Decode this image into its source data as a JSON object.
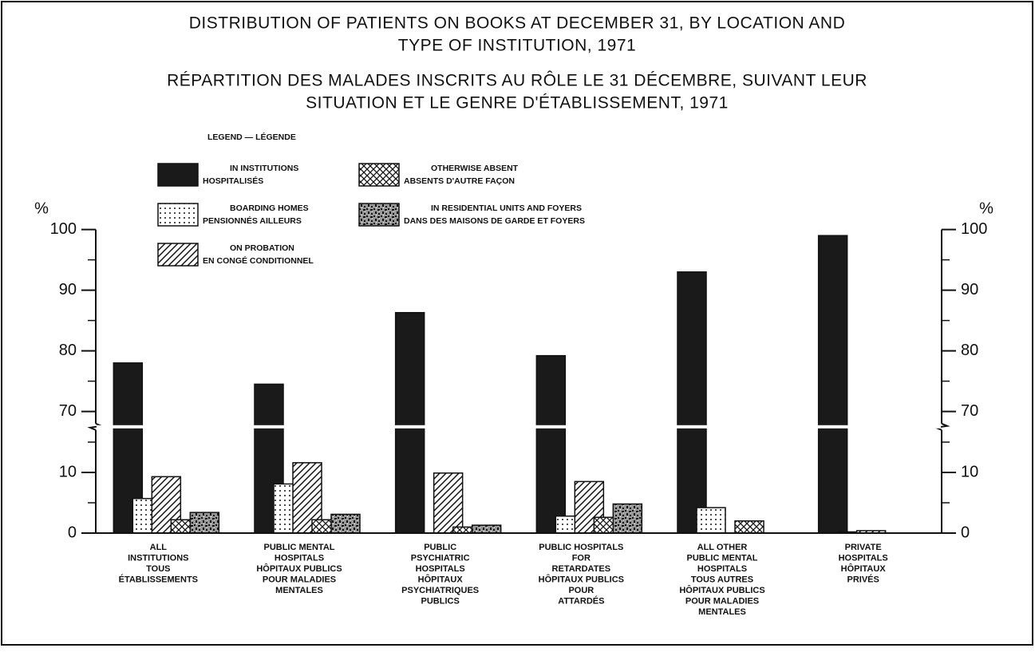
{
  "chart_data": {
    "type": "bar",
    "title": [
      "DISTRIBUTION OF PATIENTS ON BOOKS AT DECEMBER 31, BY LOCATION AND",
      "TYPE OF INSTITUTION, 1971"
    ],
    "subtitle": [
      "RÉPARTITION DES MALADES INSCRITS AU RÔLE LE 31 DÉCEMBRE, SUIVANT LEUR",
      "SITUATION ET LE GENRE D'ÉTABLISSEMENT, 1971"
    ],
    "legend_title": "LEGEND — LÉGENDE",
    "y_unit": "%",
    "categories": [
      [
        "ALL",
        "INSTITUTIONS",
        "TOUS",
        "ÉTABLISSEMENTS"
      ],
      [
        "PUBLIC MENTAL",
        "HOSPITALS",
        "HÔPITAUX PUBLICS",
        "POUR MALADIES",
        "MENTALES"
      ],
      [
        "PUBLIC",
        "PSYCHIATRIC",
        "HOSPITALS",
        "HÔPITAUX",
        "PSYCHIATRIQUES",
        "PUBLICS"
      ],
      [
        "PUBLIC HOSPITALS",
        "FOR",
        "RETARDATES",
        "HÔPITAUX PUBLICS",
        "POUR",
        "ATTARDÉS"
      ],
      [
        "ALL OTHER",
        "PUBLIC MENTAL",
        "HOSPITALS",
        "TOUS AUTRES",
        "HÔPITAUX PUBLICS",
        "POUR MALADIES",
        "MENTALES"
      ],
      [
        "PRIVATE",
        "HOSPITALS",
        "HÔPITAUX",
        "PRIVÉS"
      ]
    ],
    "series": [
      {
        "name": "IN INSTITUTIONS",
        "name_fr": "HOSPITALISÉS",
        "color": "#1a1a1a",
        "pattern": "solid",
        "values": [
          78,
          74.5,
          86.3,
          79.2,
          93,
          99
        ]
      },
      {
        "name": "BOARDING HOMES",
        "name_fr": "PENSIONNÉS AILLEURS",
        "color": "#111111",
        "pattern": "dots",
        "values": [
          5.7,
          8.1,
          null,
          2.8,
          4.2,
          0.2
        ]
      },
      {
        "name": "ON PROBATION",
        "name_fr": "EN CONGÉ CONDITIONNEL",
        "color": "#111111",
        "pattern": "hatch",
        "values": [
          9.3,
          11.6,
          9.9,
          8.5,
          null,
          0.4
        ]
      },
      {
        "name": "OTHERWISE ABSENT",
        "name_fr": "ABSENTS D'AUTRE FAÇON",
        "color": "#111111",
        "pattern": "crosshatch",
        "values": [
          2.2,
          2.2,
          1.0,
          2.6,
          2.0,
          null
        ]
      },
      {
        "name": "IN RESIDENTIAL UNITS AND FOYERS",
        "name_fr": "DANS DES MAISONS DE GARDE ET FOYERS",
        "color": "#111111",
        "pattern": "speckle",
        "values": [
          3.4,
          3.1,
          1.3,
          4.8,
          null,
          null
        ]
      }
    ],
    "ylim": [
      0,
      100
    ],
    "y_break": [
      17,
      68
    ],
    "yticks": [
      0,
      10,
      70,
      80,
      90,
      100
    ],
    "minor_yticks": [
      5,
      15,
      75,
      85,
      95
    ],
    "grid": false
  }
}
